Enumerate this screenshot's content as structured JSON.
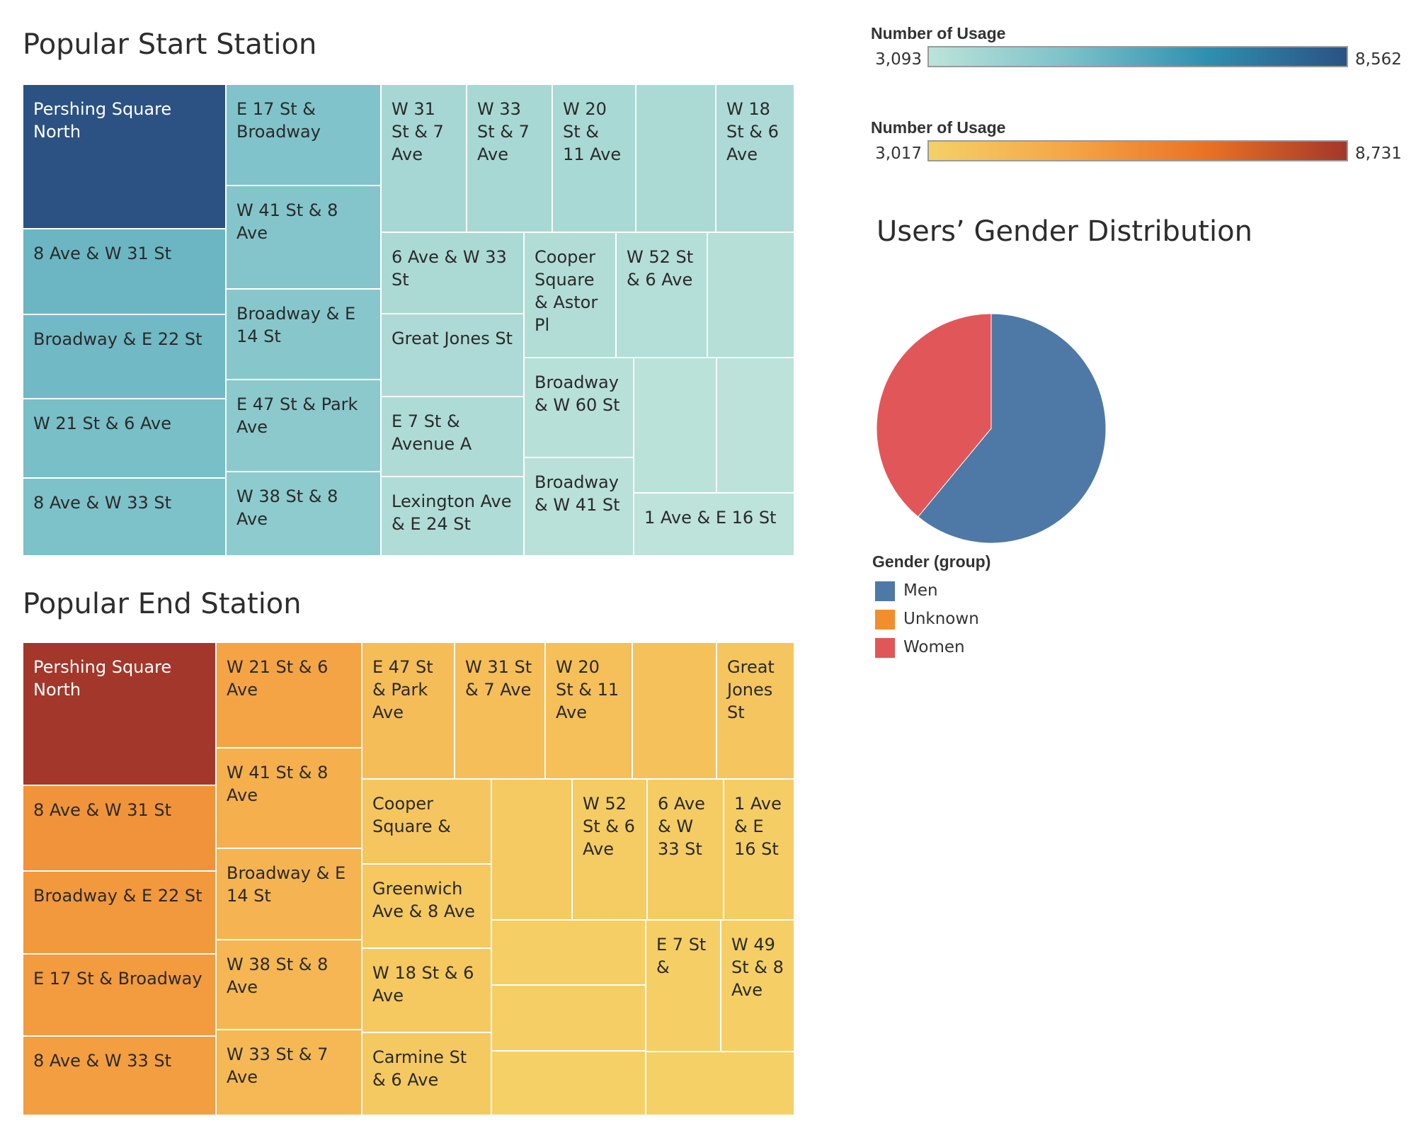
{
  "start_panel": {
    "title": "Popular Start Station"
  },
  "end_panel": {
    "title": "Popular End Station"
  },
  "start_legend": {
    "title": "Number of Usage",
    "min_label": "3,093",
    "max_label": "8,562",
    "colors": [
      "#bde3da",
      "#7cc1c9",
      "#2f8fb0",
      "#2b5283"
    ]
  },
  "end_legend": {
    "title": "Number of Usage",
    "min_label": "3,017",
    "max_label": "8,731",
    "colors": [
      "#f5d067",
      "#f5a646",
      "#ea7124",
      "#a3372b"
    ]
  },
  "pie_panel": {
    "title": "Users’ Gender Distribution"
  },
  "gender_legend": {
    "title": "Gender (group)",
    "items": [
      {
        "label": "Men",
        "color": "#4e79a7"
      },
      {
        "label": "Unknown",
        "color": "#f28e2b"
      },
      {
        "label": "Women",
        "color": "#e15759"
      }
    ]
  },
  "chart_data": [
    {
      "type": "treemap",
      "title": "Popular Start Station",
      "color_by": "Number of Usage",
      "value_range": [
        3093,
        8562
      ],
      "cells": [
        {
          "label": "Pershing Square North",
          "value": 8562
        },
        {
          "label": "8 Ave & W 31 St",
          "value": 5300
        },
        {
          "label": "Broadway & E 22 St",
          "value": 5200
        },
        {
          "label": "W 21 St & 6 Ave",
          "value": 5000
        },
        {
          "label": "8 Ave & W 33 St",
          "value": 4900
        },
        {
          "label": "E 17 St & Broadway",
          "value": 4800
        },
        {
          "label": "W 41 St & 8 Ave",
          "value": 4700
        },
        {
          "label": "Broadway & E 14 St",
          "value": 4600
        },
        {
          "label": "E 47 St & Park Ave",
          "value": 4500
        },
        {
          "label": "W 38 St & 8 Ave",
          "value": 4400
        },
        {
          "label": "W 31 St & 7 Ave",
          "value": 3750
        },
        {
          "label": "W 33 St & 7 Ave",
          "value": 3700
        },
        {
          "label": "W 20 St & 11 Ave",
          "value": 3650
        },
        {
          "label": "",
          "value": 3600
        },
        {
          "label": "W 18 St & 6 Ave",
          "value": 3550
        },
        {
          "label": "6 Ave & W 33 St",
          "value": 3600
        },
        {
          "label": "Great Jones St",
          "value": 3550
        },
        {
          "label": "E 7 St & Avenue A",
          "value": 3500
        },
        {
          "label": "Lexington Ave & E 24 St",
          "value": 3450
        },
        {
          "label": "Cooper Square & Astor Pl",
          "value": 3400
        },
        {
          "label": "W 52 St & 6 Ave",
          "value": 3350
        },
        {
          "label": "",
          "value": 3300
        },
        {
          "label": "Broadway & W 60 St",
          "value": 3250
        },
        {
          "label": "Broadway & W 41 St",
          "value": 3200
        },
        {
          "label": "",
          "value": 3150
        },
        {
          "label": "",
          "value": 3120
        },
        {
          "label": "1 Ave & E 16 St",
          "value": 3093
        }
      ]
    },
    {
      "type": "treemap",
      "title": "Popular End Station",
      "color_by": "Number of Usage",
      "value_range": [
        3017,
        8731
      ],
      "cells": [
        {
          "label": "Pershing Square North",
          "value": 8731
        },
        {
          "label": "8 Ave & W 31 St",
          "value": 5600
        },
        {
          "label": "Broadway & E 22 St",
          "value": 5400
        },
        {
          "label": "E 17 St & Broadway",
          "value": 5300
        },
        {
          "label": "8 Ave & W 33 St",
          "value": 5200
        },
        {
          "label": "W 21 St & 6 Ave",
          "value": 5000
        },
        {
          "label": "W 41 St & 8 Ave",
          "value": 4500
        },
        {
          "label": "Broadway & E 14 St",
          "value": 4300
        },
        {
          "label": "W 38 St & 8 Ave",
          "value": 4200
        },
        {
          "label": "W 33 St & 7 Ave",
          "value": 4100
        },
        {
          "label": "E 47 St & Park Ave",
          "value": 3900
        },
        {
          "label": "W 31 St & 7 Ave",
          "value": 3850
        },
        {
          "label": "W 20 St & 11 Ave",
          "value": 3800
        },
        {
          "label": "",
          "value": 3700
        },
        {
          "label": "Great Jones St",
          "value": 3500
        },
        {
          "label": "Cooper Square &",
          "value": 3450
        },
        {
          "label": "Greenwich Ave & 8 Ave",
          "value": 3400
        },
        {
          "label": "W 18 St & 6 Ave",
          "value": 3400
        },
        {
          "label": "Carmine St & 6 Ave",
          "value": 3350
        },
        {
          "label": "",
          "value": 3300
        },
        {
          "label": "W 52 St & 6 Ave",
          "value": 3250
        },
        {
          "label": "6 Ave & W 33 St",
          "value": 3200
        },
        {
          "label": "1 Ave & E 16 St",
          "value": 3150
        },
        {
          "label": "",
          "value": 3120
        },
        {
          "label": "",
          "value": 3100
        },
        {
          "label": "E 7 St &",
          "value": 3080
        },
        {
          "label": "W 49 St & 8 Ave",
          "value": 3050
        },
        {
          "label": "",
          "value": 3030
        },
        {
          "label": "",
          "value": 3017
        }
      ]
    },
    {
      "type": "pie",
      "title": "Users’ Gender Distribution",
      "legend_title": "Gender (group)",
      "legend_position": "bottom-left",
      "slices": [
        {
          "label": "Men",
          "value": 61
        },
        {
          "label": "Unknown",
          "value": 0
        },
        {
          "label": "Women",
          "value": 39
        }
      ]
    }
  ]
}
